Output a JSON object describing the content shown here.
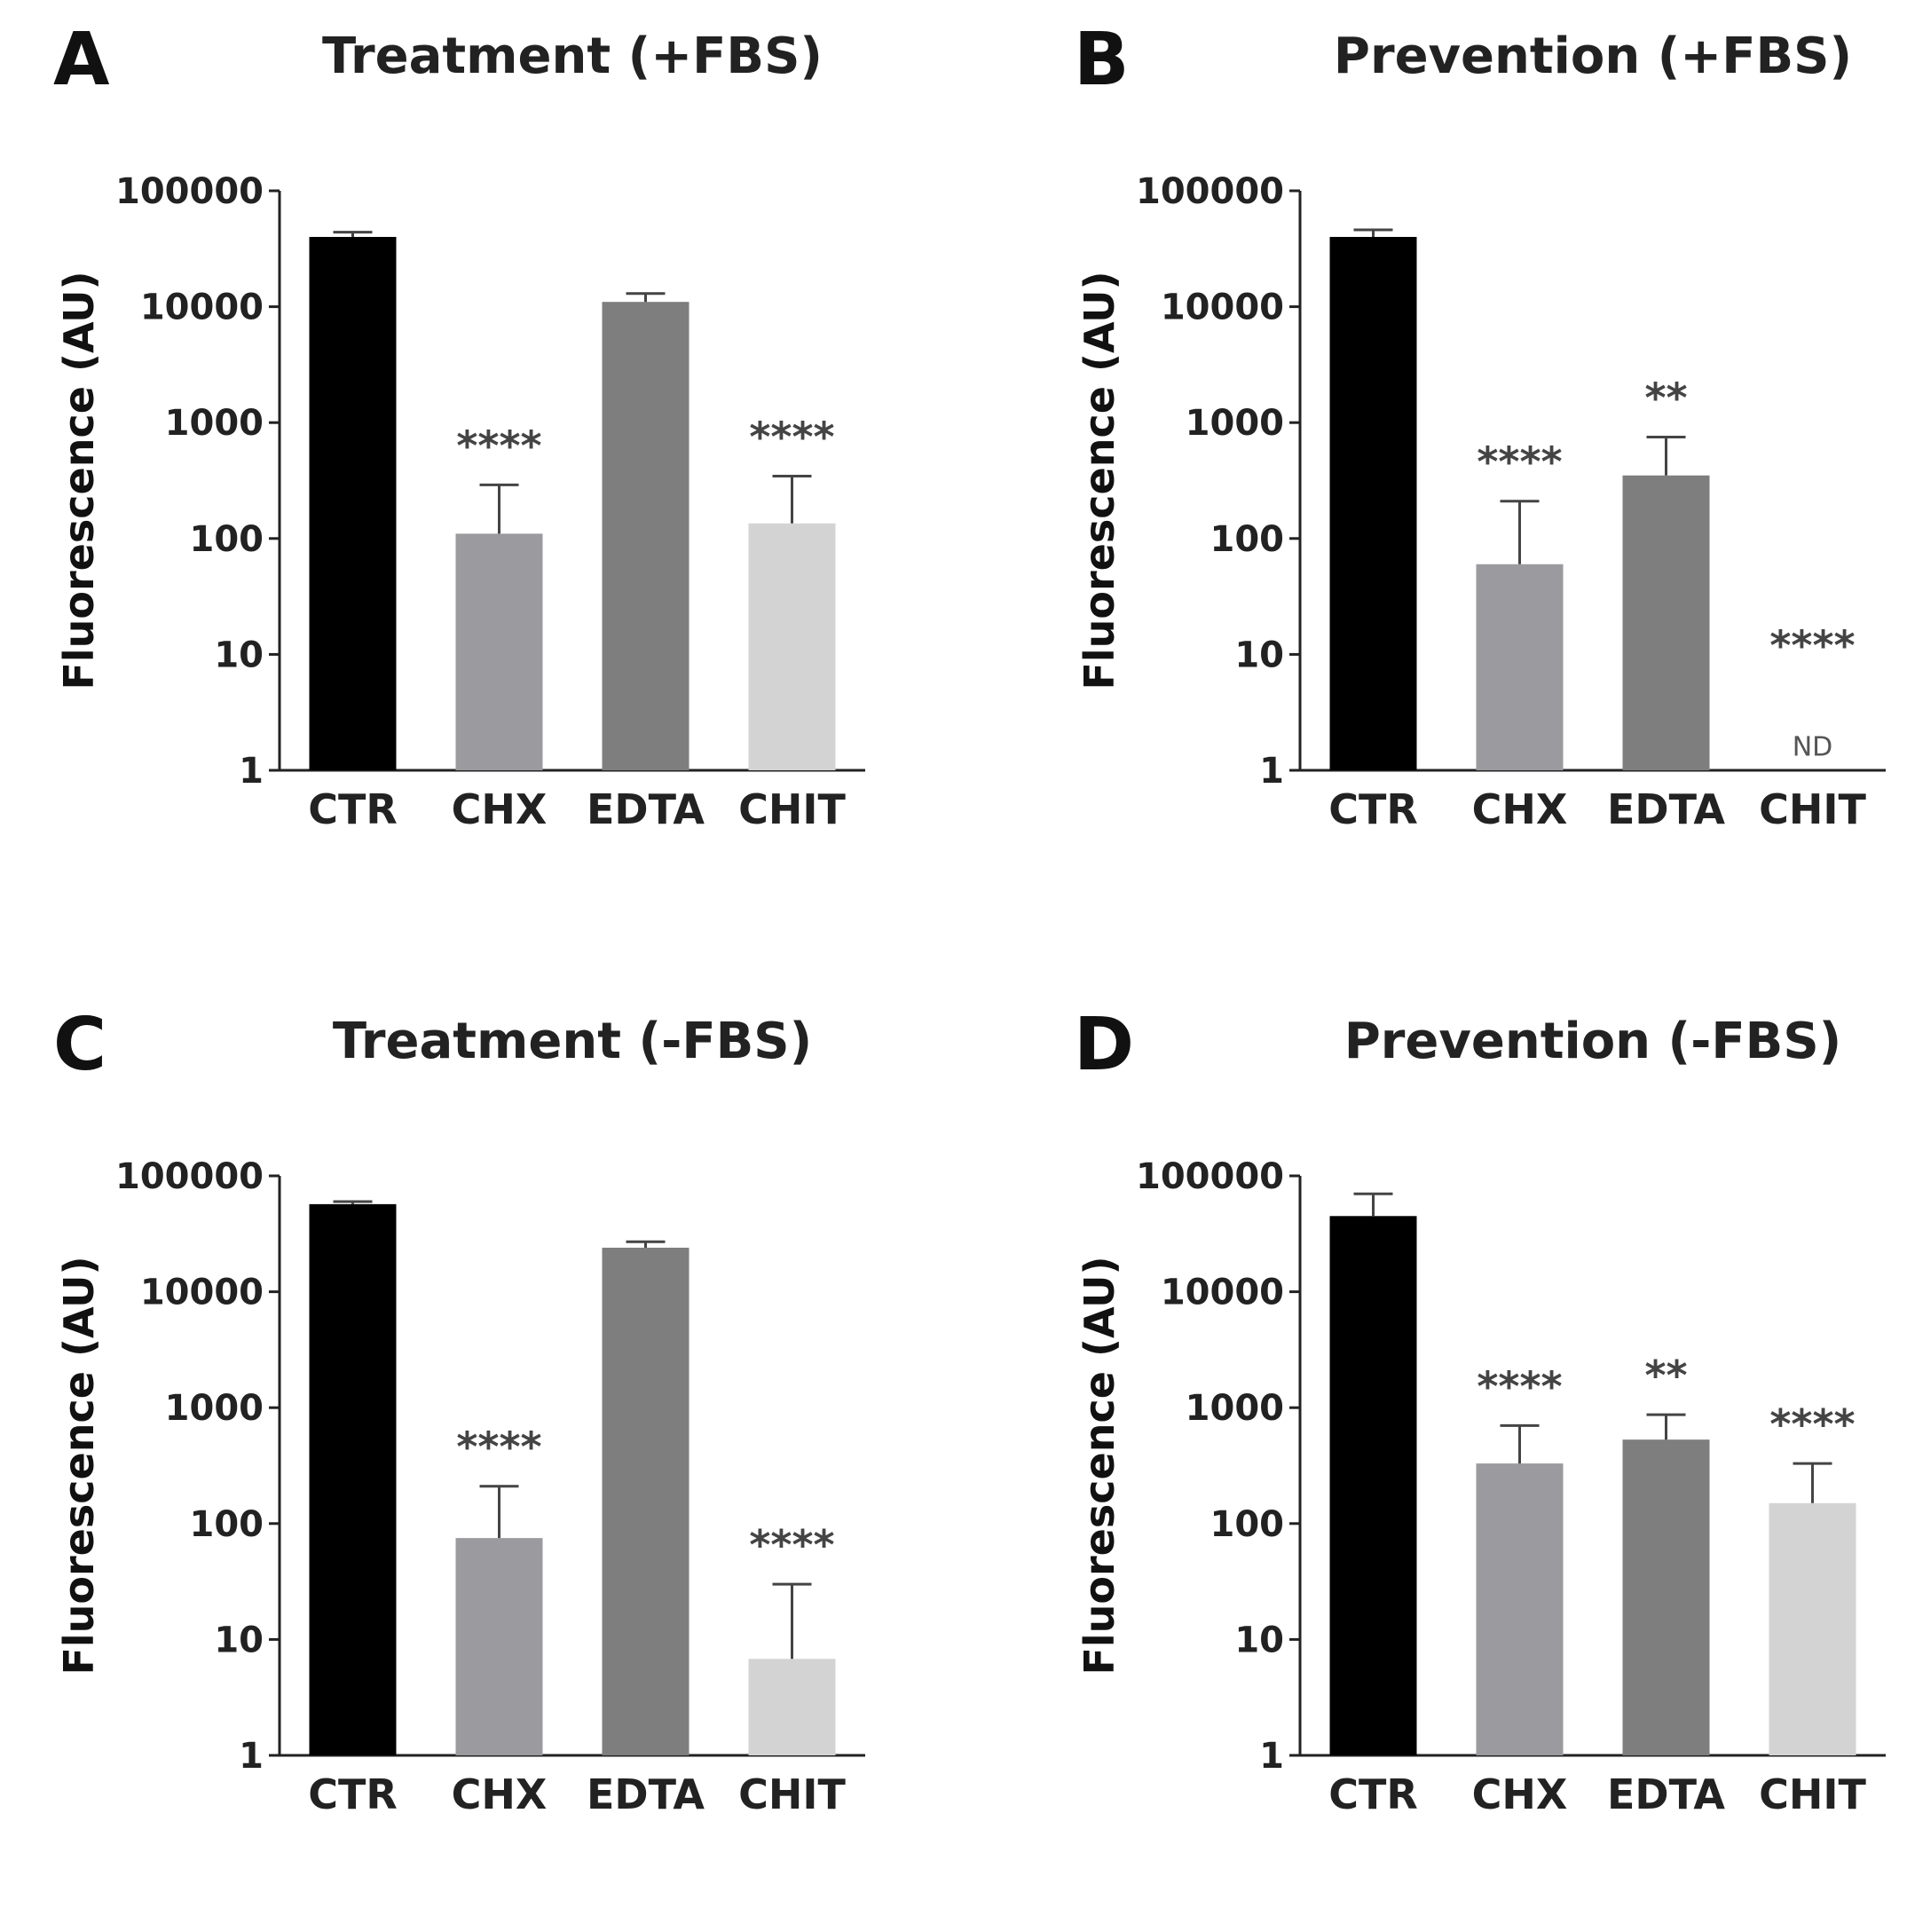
{
  "figure": {
    "y_axis_label": "Fluorescence (AU)",
    "y_ticks": [
      "1",
      "10",
      "100",
      "1000",
      "10000",
      "100000"
    ]
  },
  "chart_data": [
    {
      "panel": "A",
      "type": "bar",
      "title": "Treatment (+FBS)",
      "ylabel": "Fluorescence (AU)",
      "yscale": "log",
      "ylim": [
        1,
        100000
      ],
      "categories": [
        "CTR",
        "CHX",
        "EDTA",
        "CHIT"
      ],
      "values": [
        40000,
        110,
        11000,
        135
      ],
      "error_upper": [
        44000,
        290,
        13000,
        345
      ],
      "significance": [
        "",
        "****",
        "",
        "****"
      ],
      "annotations": [
        "",
        "",
        "",
        ""
      ],
      "colors": [
        "#000000",
        "#9b9b9f",
        "#7e7e7e",
        "#d3d3d3"
      ]
    },
    {
      "panel": "B",
      "type": "bar",
      "title": "Prevention (+FBS)",
      "ylabel": "Fluorescence (AU)",
      "yscale": "log",
      "ylim": [
        1,
        100000
      ],
      "categories": [
        "CTR",
        "CHX",
        "EDTA",
        "CHIT"
      ],
      "values": [
        40000,
        60,
        350,
        null
      ],
      "error_upper": [
        46000,
        210,
        750,
        null
      ],
      "significance": [
        "",
        "****",
        "**",
        "****"
      ],
      "annotations": [
        "",
        "",
        "",
        "ND"
      ],
      "colors": [
        "#000000",
        "#9b9b9f",
        "#7e7e7e",
        "#d3d3d3"
      ]
    },
    {
      "panel": "C",
      "type": "bar",
      "title": "Treatment (-FBS)",
      "ylabel": "Fluorescence (AU)",
      "yscale": "log",
      "ylim": [
        1,
        100000
      ],
      "categories": [
        "CTR",
        "CHX",
        "EDTA",
        "CHIT"
      ],
      "values": [
        57000,
        75,
        24000,
        6.8
      ],
      "error_upper": [
        60000,
        210,
        27000,
        30
      ],
      "significance": [
        "",
        "****",
        "",
        "****"
      ],
      "annotations": [
        "",
        "",
        "",
        ""
      ],
      "colors": [
        "#000000",
        "#9b9b9f",
        "#7e7e7e",
        "#d3d3d3"
      ]
    },
    {
      "panel": "D",
      "type": "bar",
      "title": "Prevention (-FBS)",
      "ylabel": "Fluorescence (AU)",
      "yscale": "log",
      "ylim": [
        1,
        100000
      ],
      "categories": [
        "CTR",
        "CHX",
        "EDTA",
        "CHIT"
      ],
      "values": [
        45000,
        330,
        530,
        150
      ],
      "error_upper": [
        70000,
        700,
        870,
        330
      ],
      "significance": [
        "",
        "****",
        "**",
        "****"
      ],
      "annotations": [
        "",
        "",
        "",
        ""
      ],
      "colors": [
        "#000000",
        "#9b9b9f",
        "#7e7e7e",
        "#d3d3d3"
      ]
    }
  ]
}
